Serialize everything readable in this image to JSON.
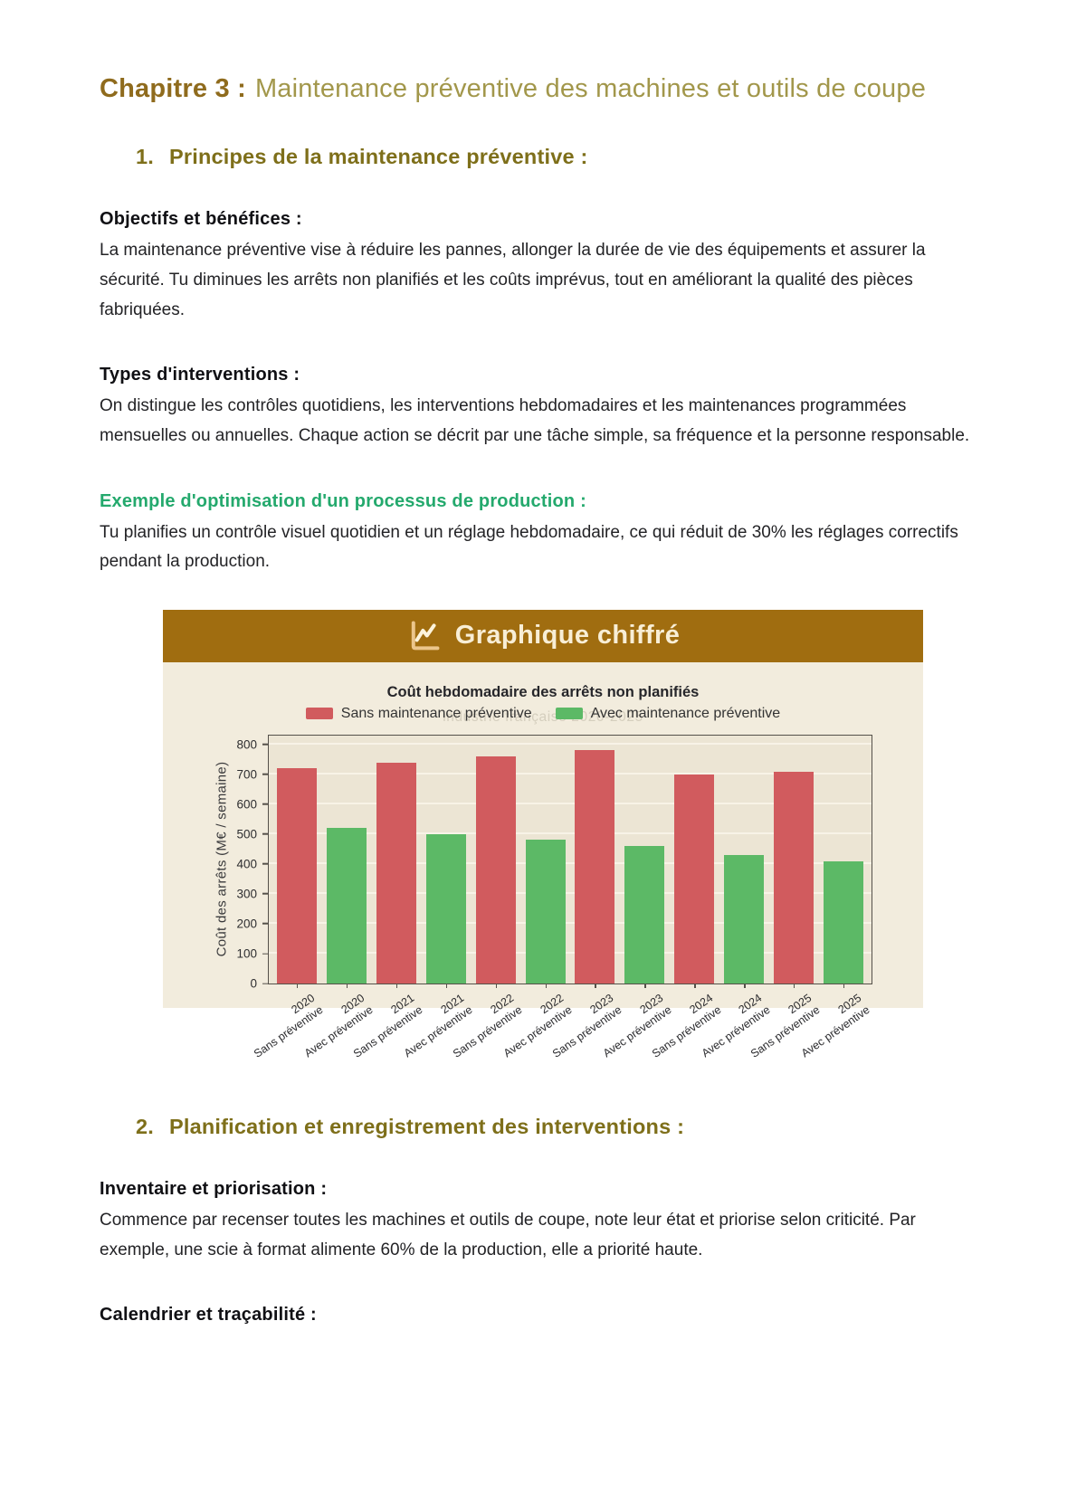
{
  "doc": {
    "chapter_label": "Chapitre 3 :",
    "chapter_title": "Maintenance préventive des machines et outils de coupe",
    "section1": {
      "number": "1.",
      "title": "Principes de la maintenance préventive :"
    },
    "blocks1": [
      {
        "heading": "Objectifs et bénéfices :",
        "body": "La maintenance préventive vise à réduire les pannes, allonger la durée de vie des équipements et assurer la sécurité. Tu diminues les arrêts non planifiés et les coûts imprévus, tout en améliorant la qualité des pièces fabriquées."
      },
      {
        "heading": "Types d'interventions :",
        "body": "On distingue les contrôles quotidiens, les interventions hebdomadaires et les maintenances programmées mensuelles ou annuelles. Chaque action se décrit par une tâche simple, sa fréquence et la personne responsable."
      },
      {
        "heading": "Exemple d'optimisation d'un processus de production :",
        "body": "Tu planifies un contrôle visuel quotidien et un réglage hebdomadaire, ce qui réduit de 30% les réglages correctifs pendant la production."
      }
    ],
    "section2": {
      "number": "2.",
      "title": "Planification et enregistrement des interventions :"
    },
    "blocks2": [
      {
        "heading": "Inventaire et priorisation :",
        "body": "Commence par recenser toutes les machines et outils de coupe, note leur état et priorise selon criticité. Par exemple, une scie à format alimente 60% de la production, elle a priorité haute."
      },
      {
        "heading": "Calendrier et traçabilité :",
        "body": ""
      }
    ]
  },
  "chart_card": {
    "header_title": "Graphique chiffré",
    "header_icon": "line-chart-icon",
    "header_bg": "#a06d10",
    "body_bg": "#f2ecdd"
  },
  "chart_data": {
    "type": "bar",
    "title": "Coût hebdomadaire des arrêts non planifiés",
    "watermark": "industrie française 2020-2025",
    "ylabel": "Coût des arrêts (M€ / semaine)",
    "ylim": [
      0,
      830
    ],
    "yticks": [
      0,
      100,
      200,
      300,
      400,
      500,
      600,
      700,
      800
    ],
    "grid": "horizontal",
    "legend_position": "top",
    "years": [
      "2020",
      "2021",
      "2022",
      "2023",
      "2024",
      "2025"
    ],
    "series": [
      {
        "name": "Sans maintenance préventive",
        "color": "#d15b5e",
        "values": [
          720,
          740,
          760,
          780,
          700,
          710
        ]
      },
      {
        "name": "Avec maintenance préventive",
        "color": "#5cb966",
        "values": [
          520,
          500,
          480,
          460,
          430,
          410
        ]
      }
    ],
    "bars": [
      {
        "year": "2020",
        "variant": "Sans préventive",
        "value": 720,
        "series": 0
      },
      {
        "year": "2020",
        "variant": "Avec préventive",
        "value": 520,
        "series": 1
      },
      {
        "year": "2021",
        "variant": "Sans préventive",
        "value": 740,
        "series": 0
      },
      {
        "year": "2021",
        "variant": "Avec préventive",
        "value": 500,
        "series": 1
      },
      {
        "year": "2022",
        "variant": "Sans préventive",
        "value": 760,
        "series": 0
      },
      {
        "year": "2022",
        "variant": "Avec préventive",
        "value": 480,
        "series": 1
      },
      {
        "year": "2023",
        "variant": "Sans préventive",
        "value": 780,
        "series": 0
      },
      {
        "year": "2023",
        "variant": "Avec préventive",
        "value": 460,
        "series": 1
      },
      {
        "year": "2024",
        "variant": "Sans préventive",
        "value": 700,
        "series": 0
      },
      {
        "year": "2024",
        "variant": "Avec préventive",
        "value": 430,
        "series": 1
      },
      {
        "year": "2025",
        "variant": "Sans préventive",
        "value": 710,
        "series": 0
      },
      {
        "year": "2025",
        "variant": "Avec préventive",
        "value": 410,
        "series": 1
      }
    ]
  },
  "colors": {
    "chapter_label": "#8f6b1d",
    "chapter_title": "#a2974b",
    "section_heading": "#7e6f1a",
    "green_heading": "#24a96d",
    "bar_red": "#d15b5e",
    "bar_green": "#5cb966"
  }
}
